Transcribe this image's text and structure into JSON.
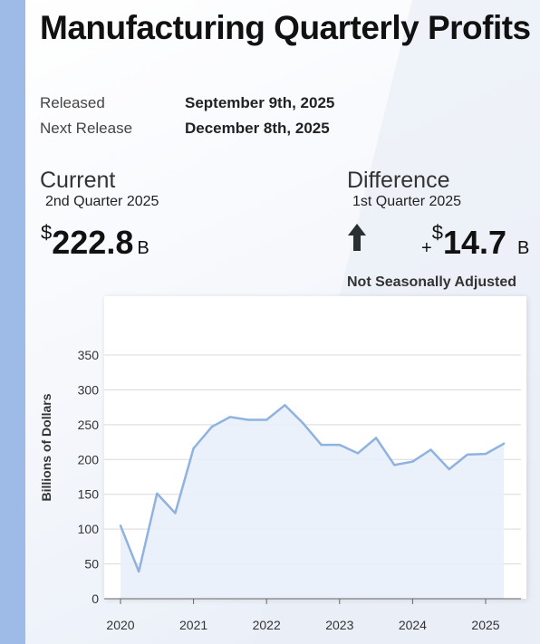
{
  "header": {
    "title": "Manufacturing Quarterly Profits"
  },
  "release": {
    "released_label": "Released",
    "released_value": "September 9th, 2025",
    "next_label": "Next Release",
    "next_value": "December 8th, 2025"
  },
  "current": {
    "heading": "Current",
    "period": "2nd Quarter 2025",
    "currency": "$",
    "value": "222.8",
    "unit": "B"
  },
  "difference": {
    "heading": "Difference",
    "period": "1st Quarter 2025",
    "sign": "+",
    "currency": "$",
    "value": "14.7",
    "unit": "B",
    "direction_icon": "arrow-up-icon"
  },
  "note": "Not Seasonally Adjusted",
  "colors": {
    "line": "#8fb2e0",
    "area": "#e9f0fa",
    "strip": "#9dbbe6",
    "grid": "#d9d9d9"
  },
  "chart_data": {
    "type": "area",
    "ylabel": "Billions of Dollars",
    "ylim": [
      0,
      350
    ],
    "yticks": [
      0,
      50,
      100,
      150,
      200,
      250,
      300,
      350
    ],
    "xticks": [
      "2020",
      "2021",
      "2022",
      "2023",
      "2024",
      "2025"
    ],
    "x_range": [
      2020,
      2025.5
    ],
    "grid": true,
    "series": [
      {
        "x": [
          2020.0,
          2020.25,
          2020.5,
          2020.75,
          2021.0,
          2021.25,
          2021.5,
          2021.75,
          2022.0,
          2022.25,
          2022.5,
          2022.75,
          2023.0,
          2023.25,
          2023.5,
          2023.75,
          2024.0,
          2024.25,
          2024.5,
          2024.75,
          2025.0,
          2025.25
        ],
        "values": [
          105,
          39,
          151,
          123,
          216,
          247,
          261,
          257,
          257,
          278,
          252,
          221,
          221,
          209,
          231,
          192,
          197,
          214,
          186,
          207,
          208,
          222.8
        ]
      }
    ]
  }
}
